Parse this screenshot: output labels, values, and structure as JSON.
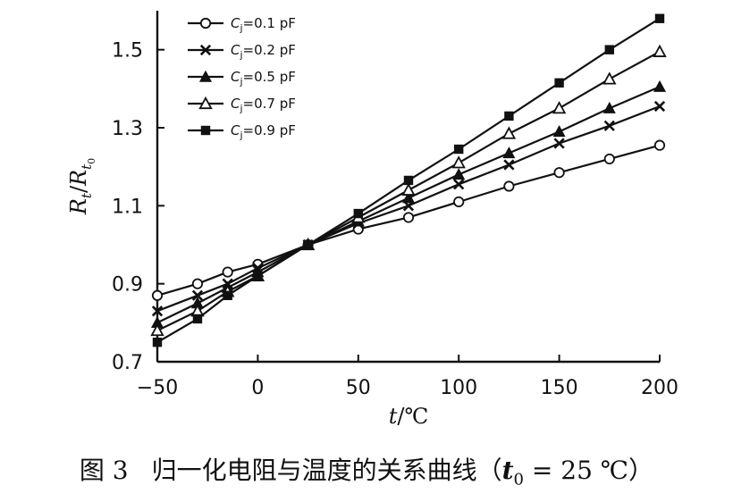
{
  "chart_data": {
    "type": "line",
    "title": "",
    "xlabel": "t/℃",
    "ylabel": "R_t / R_t0",
    "xlim": [
      -50,
      200
    ],
    "ylim": [
      0.7,
      1.6
    ],
    "xticks": [
      -50,
      0,
      50,
      100,
      150,
      200
    ],
    "xtick_labels": [
      "−50",
      "0",
      "50",
      "100",
      "150",
      "200"
    ],
    "yticks": [
      0.7,
      0.9,
      1.1,
      1.3,
      1.5
    ],
    "ytick_labels": [
      "0.7",
      "0.9",
      "1.1",
      "1.3",
      "1.5"
    ],
    "grid": false,
    "legend_position": "top-left",
    "x": [
      -50,
      -30,
      -15,
      0,
      25,
      50,
      75,
      100,
      125,
      150,
      175,
      200
    ],
    "series": [
      {
        "name": "Cj=0.1 pF",
        "label_var": "C",
        "label_sub": "j",
        "label_rest": "=0.1 pF",
        "marker": "circle-open",
        "values": [
          0.87,
          0.9,
          0.93,
          0.95,
          1.0,
          1.04,
          1.07,
          1.11,
          1.15,
          1.185,
          1.22,
          1.255
        ]
      },
      {
        "name": "Cj=0.2 pF",
        "label_var": "C",
        "label_sub": "j",
        "label_rest": "=0.2 pF",
        "marker": "cross",
        "values": [
          0.83,
          0.87,
          0.9,
          0.94,
          1.0,
          1.055,
          1.1,
          1.155,
          1.205,
          1.26,
          1.305,
          1.355
        ]
      },
      {
        "name": "Cj=0.5 pF",
        "label_var": "C",
        "label_sub": "j",
        "label_rest": "=0.5 pF",
        "marker": "triangle-filled",
        "values": [
          0.8,
          0.85,
          0.89,
          0.93,
          1.0,
          1.06,
          1.12,
          1.18,
          1.235,
          1.29,
          1.35,
          1.405
        ]
      },
      {
        "name": "Cj=0.7 pF",
        "label_var": "C",
        "label_sub": "j",
        "label_rest": "=0.7 pF",
        "marker": "triangle-open",
        "values": [
          0.78,
          0.83,
          0.88,
          0.92,
          1.0,
          1.07,
          1.14,
          1.21,
          1.285,
          1.35,
          1.425,
          1.495
        ]
      },
      {
        "name": "Cj=0.9 pF",
        "label_var": "C",
        "label_sub": "j",
        "label_rest": "=0.9 pF",
        "marker": "square-filled",
        "values": [
          0.75,
          0.81,
          0.87,
          0.92,
          1.0,
          1.08,
          1.165,
          1.245,
          1.33,
          1.415,
          1.5,
          1.58
        ]
      }
    ]
  },
  "caption": {
    "figure_number": "图 3",
    "text": "归一化电阻与温度的关系曲线",
    "open_paren": "（",
    "t_var": "t",
    "t_sub": "0",
    "equals": " = 25 ℃",
    "close_paren": "）"
  },
  "colors": {
    "ink": "#111111",
    "background": "#ffffff"
  }
}
